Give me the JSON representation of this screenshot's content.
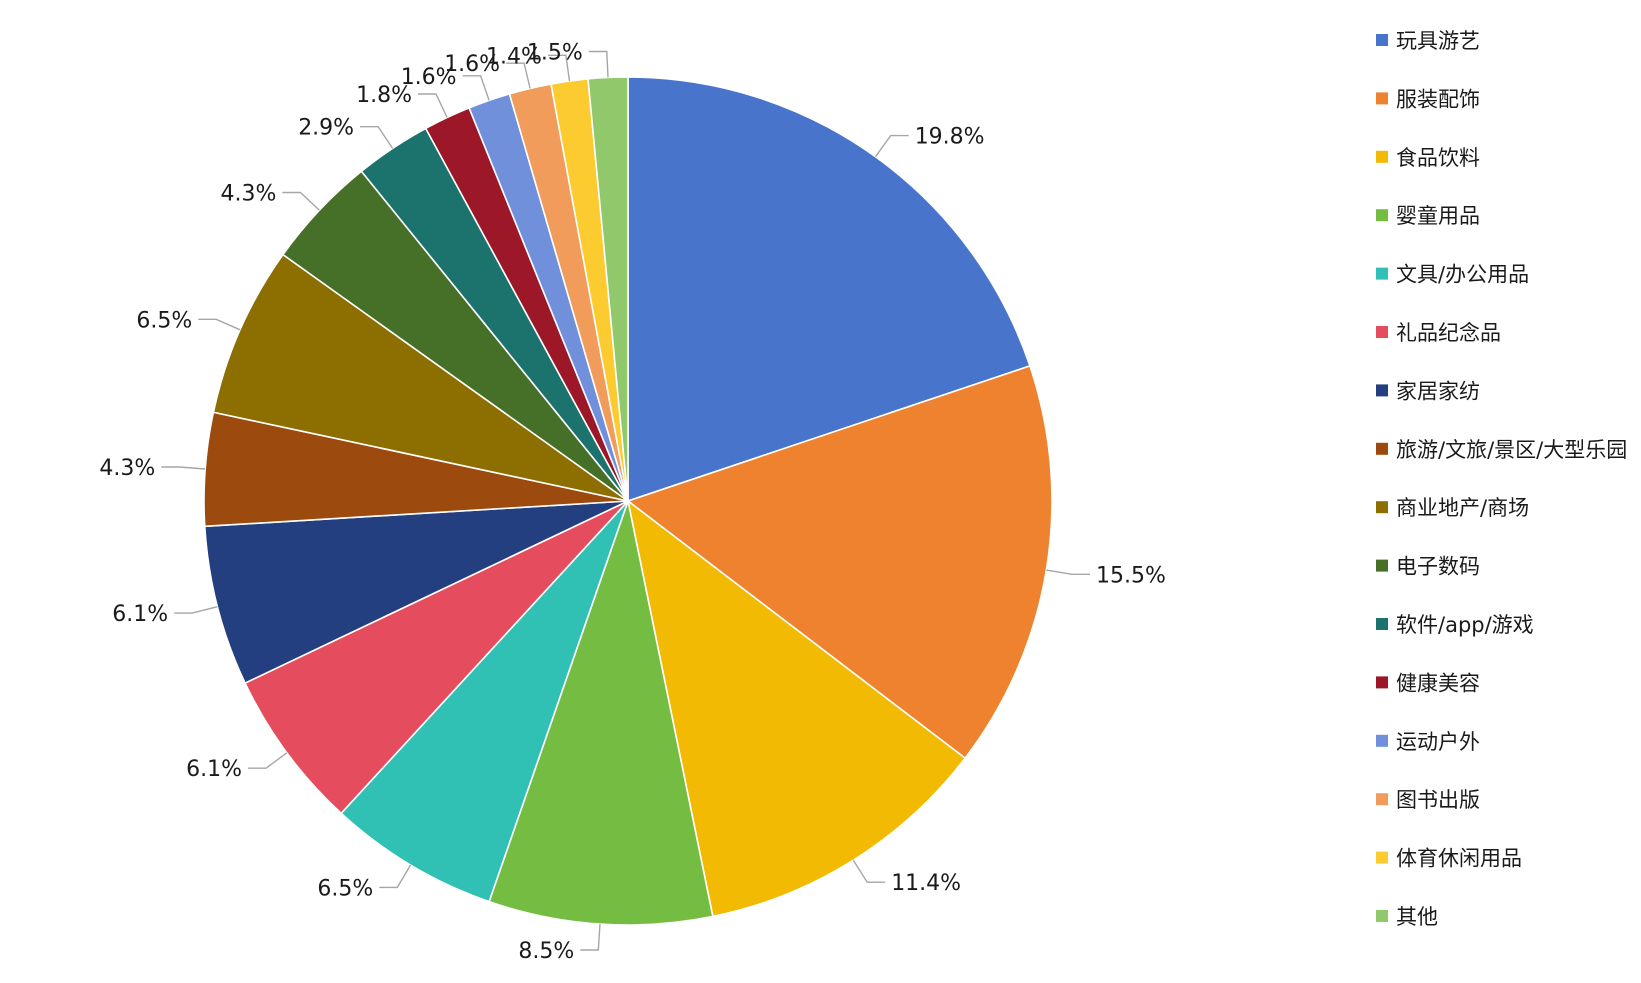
{
  "chart_data": {
    "type": "pie",
    "title": "",
    "legend_position": "right",
    "slices": [
      {
        "label": "玩具游艺",
        "value": 19.8,
        "display": "19.8%",
        "color": "#4874CB"
      },
      {
        "label": "服装配饰",
        "value": 15.5,
        "display": "15.5%",
        "color": "#EE822F"
      },
      {
        "label": "食品饮料",
        "value": 11.4,
        "display": "11.4%",
        "color": "#F2BA02"
      },
      {
        "label": "婴童用品",
        "value": 8.5,
        "display": "8.5%",
        "color": "#75BD42"
      },
      {
        "label": "文具/办公用品",
        "value": 6.5,
        "display": "6.5%",
        "color": "#30C0B4"
      },
      {
        "label": "礼品纪念品",
        "value": 6.1,
        "display": "6.1%",
        "color": "#E54C5E"
      },
      {
        "label": "家居家纺",
        "value": 6.1,
        "display": "6.1%",
        "color": "#243F7F"
      },
      {
        "label": "旅游/文旅/景区/大型乐园",
        "value": 4.3,
        "display": "4.3%",
        "color": "#9C4A0E"
      },
      {
        "label": "商业地产/商场",
        "value": 6.5,
        "display": "6.5%",
        "color": "#8D6E00"
      },
      {
        "label": "电子数码",
        "value": 4.3,
        "display": "4.3%",
        "color": "#466F28"
      },
      {
        "label": "软件/app/游戏",
        "value": 2.9,
        "display": "2.9%",
        "color": "#1C726C"
      },
      {
        "label": "健康美容",
        "value": 1.8,
        "display": "1.8%",
        "color": "#9C1727"
      },
      {
        "label": "运动户外",
        "value": 1.6,
        "display": "1.6%",
        "color": "#7090DC"
      },
      {
        "label": "图书出版",
        "value": 1.6,
        "display": "1.6%",
        "color": "#F19C5A"
      },
      {
        "label": "体育休闲用品",
        "value": 1.4,
        "display": "1.4%",
        "color": "#FCCB30"
      },
      {
        "label": "其他",
        "value": 1.5,
        "display": "1.5%",
        "color": "#91C86B"
      }
    ]
  }
}
